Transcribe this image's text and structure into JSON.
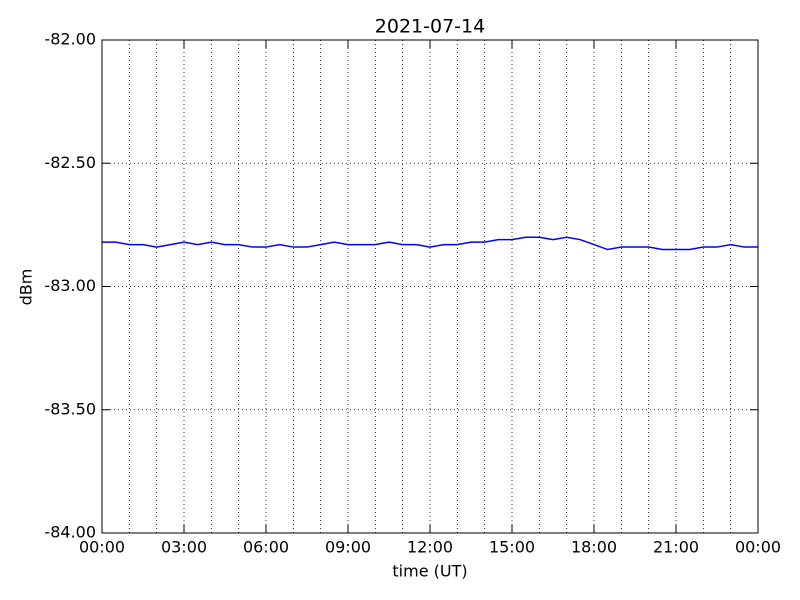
{
  "chart_data": {
    "type": "line",
    "title": "2021-07-14",
    "xlabel": "time (UT)",
    "ylabel": "dBm",
    "x": [
      0,
      0.5,
      1,
      1.5,
      2,
      2.5,
      3,
      3.5,
      4,
      4.5,
      5,
      5.5,
      6,
      6.5,
      7,
      7.5,
      8,
      8.5,
      9,
      9.5,
      10,
      10.5,
      11,
      11.5,
      12,
      12.5,
      13,
      13.5,
      14,
      14.5,
      15,
      15.5,
      16,
      16.5,
      17,
      17.5,
      18,
      18.5,
      19,
      19.5,
      20,
      20.5,
      21,
      21.5,
      22,
      22.5,
      23,
      23.5,
      24
    ],
    "series": [
      {
        "name": "dBm",
        "color": "#0000ff",
        "values": [
          -82.82,
          -82.82,
          -82.83,
          -82.83,
          -82.84,
          -82.83,
          -82.82,
          -82.83,
          -82.82,
          -82.83,
          -82.83,
          -82.84,
          -82.84,
          -82.83,
          -82.84,
          -82.84,
          -82.83,
          -82.82,
          -82.83,
          -82.83,
          -82.83,
          -82.82,
          -82.83,
          -82.83,
          -82.84,
          -82.83,
          -82.83,
          -82.82,
          -82.82,
          -82.81,
          -82.81,
          -82.8,
          -82.8,
          -82.81,
          -82.8,
          -82.81,
          -82.83,
          -82.85,
          -82.84,
          -82.84,
          -82.84,
          -82.85,
          -82.85,
          -82.85,
          -82.84,
          -82.84,
          -82.83,
          -82.84,
          -82.84
        ]
      }
    ],
    "xlim": [
      0,
      24
    ],
    "xticks": [
      {
        "value": 0,
        "label": "00:00"
      },
      {
        "value": 3,
        "label": "03:00"
      },
      {
        "value": 6,
        "label": "06:00"
      },
      {
        "value": 9,
        "label": "09:00"
      },
      {
        "value": 12,
        "label": "12:00"
      },
      {
        "value": 15,
        "label": "15:00"
      },
      {
        "value": 18,
        "label": "18:00"
      },
      {
        "value": 21,
        "label": "21:00"
      },
      {
        "value": 24,
        "label": "00:00"
      }
    ],
    "xminorticks": [
      1,
      2,
      4,
      5,
      7,
      8,
      10,
      11,
      13,
      14,
      16,
      17,
      19,
      20,
      22,
      23
    ],
    "ylim": [
      -84,
      -82
    ],
    "yticks": [
      {
        "value": -84,
        "label": "-84.00"
      },
      {
        "value": -83.5,
        "label": "-83.50"
      },
      {
        "value": -83,
        "label": "-83.00"
      },
      {
        "value": -82.5,
        "label": "-82.50"
      },
      {
        "value": -82,
        "label": "-82.00"
      }
    ],
    "grid": true
  }
}
